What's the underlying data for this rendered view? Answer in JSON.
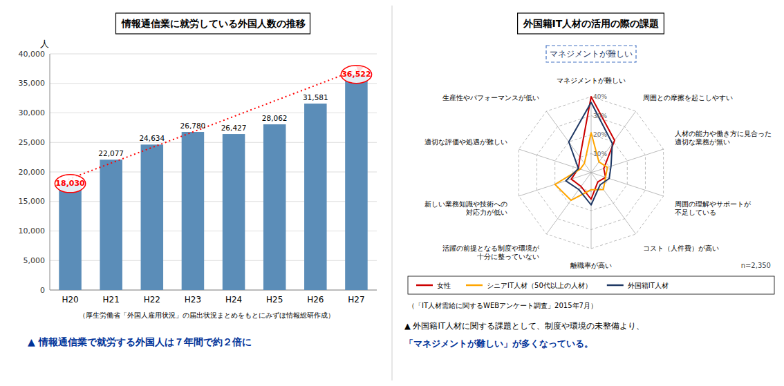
{
  "chart_data": [
    {
      "type": "bar",
      "title": "情報通信業に就労している外国人数の推移",
      "ylabel": "人",
      "categories": [
        "H20",
        "H21",
        "H22",
        "H23",
        "H24",
        "H25",
        "H26",
        "H27"
      ],
      "values": [
        18030,
        22077,
        24634,
        26780,
        26427,
        28062,
        31581,
        36522
      ],
      "value_labels": [
        "18,030",
        "22,077",
        "24,634",
        "26,780",
        "26,427",
        "28,062",
        "31,581",
        "36,522"
      ],
      "data_labels": true,
      "color": "#5B8DB8",
      "ylim": [
        0,
        40000
      ],
      "yticks": [
        0,
        {
          "value": 5000,
          "label": "5,000"
        },
        {
          "value": 10000,
          "label": "10,000"
        },
        {
          "value": 15000,
          "label": "15,000"
        },
        {
          "value": 20000,
          "label": "20,000"
        },
        {
          "value": 25000,
          "label": "25,000"
        },
        {
          "value": 30000,
          "label": "30,000"
        },
        {
          "value": 35000,
          "label": "35,000"
        },
        {
          "value": 40000,
          "label": "40,000"
        }
      ],
      "grid": true,
      "annotations": [
        "（厚生労働省「外国人雇用状況」の届出状況まとめをもとにみずほ情報総研作成）",
        "▲ 情報通信業で就労する外国人は７年間で約２倍に"
      ]
    },
    {
      "type": "radar",
      "title": "外国籍IT人材の活用の際の課題",
      "categories": [
        "マネジメントが難しい",
        "周囲との摩擦を起こしやすい",
        "人材の能力や働き方に見合った\n適切な業務が無い",
        "周囲の理解やサポートが\n不足している",
        "コスト（人件費）が高い",
        "離職率が高い",
        "活躍の前提となる制度や環境が\n十分に整っていない",
        "新しい業務知識や技術への\n対応力が低い",
        "適切な評価や処遇が難しい",
        "生産性やパフォーマンスが低い"
      ],
      "series": [
        {
          "name": "女性",
          "color": "#CC0000",
          "values": [
            40,
            21,
            7,
            8,
            6,
            14,
            9,
            11,
            7,
            10
          ]
        },
        {
          "name": "シニアIT人材（50代以上の人材）",
          "color": "#FFA500",
          "values": [
            21,
            7,
            9,
            8,
            11,
            9,
            18,
            20,
            6,
            6
          ]
        },
        {
          "name": "外国籍IT人材",
          "color": "#1F3864",
          "values": [
            37,
            19,
            11,
            10,
            8,
            17,
            11,
            14,
            7,
            20
          ]
        }
      ],
      "ylim": [
        0,
        40
      ],
      "yticks": [
        {
          "value": 10,
          "label": "10%"
        },
        {
          "value": 20,
          "label": "20%"
        },
        {
          "value": 30,
          "label": "30%"
        },
        {
          "value": 40,
          "label": "40%"
        }
      ],
      "grid": true,
      "legend": "bottom",
      "annotations": [
        "マネジメントが難しい",
        "n=2,350",
        "（「IT人材需給に関するWEBアンケート調査」2015年7月）",
        "▲ 外国籍IT人材に関する課題として、制度や環境の未整備より、",
        "「マネジメントが難しい」が多くなっている。"
      ]
    }
  ]
}
